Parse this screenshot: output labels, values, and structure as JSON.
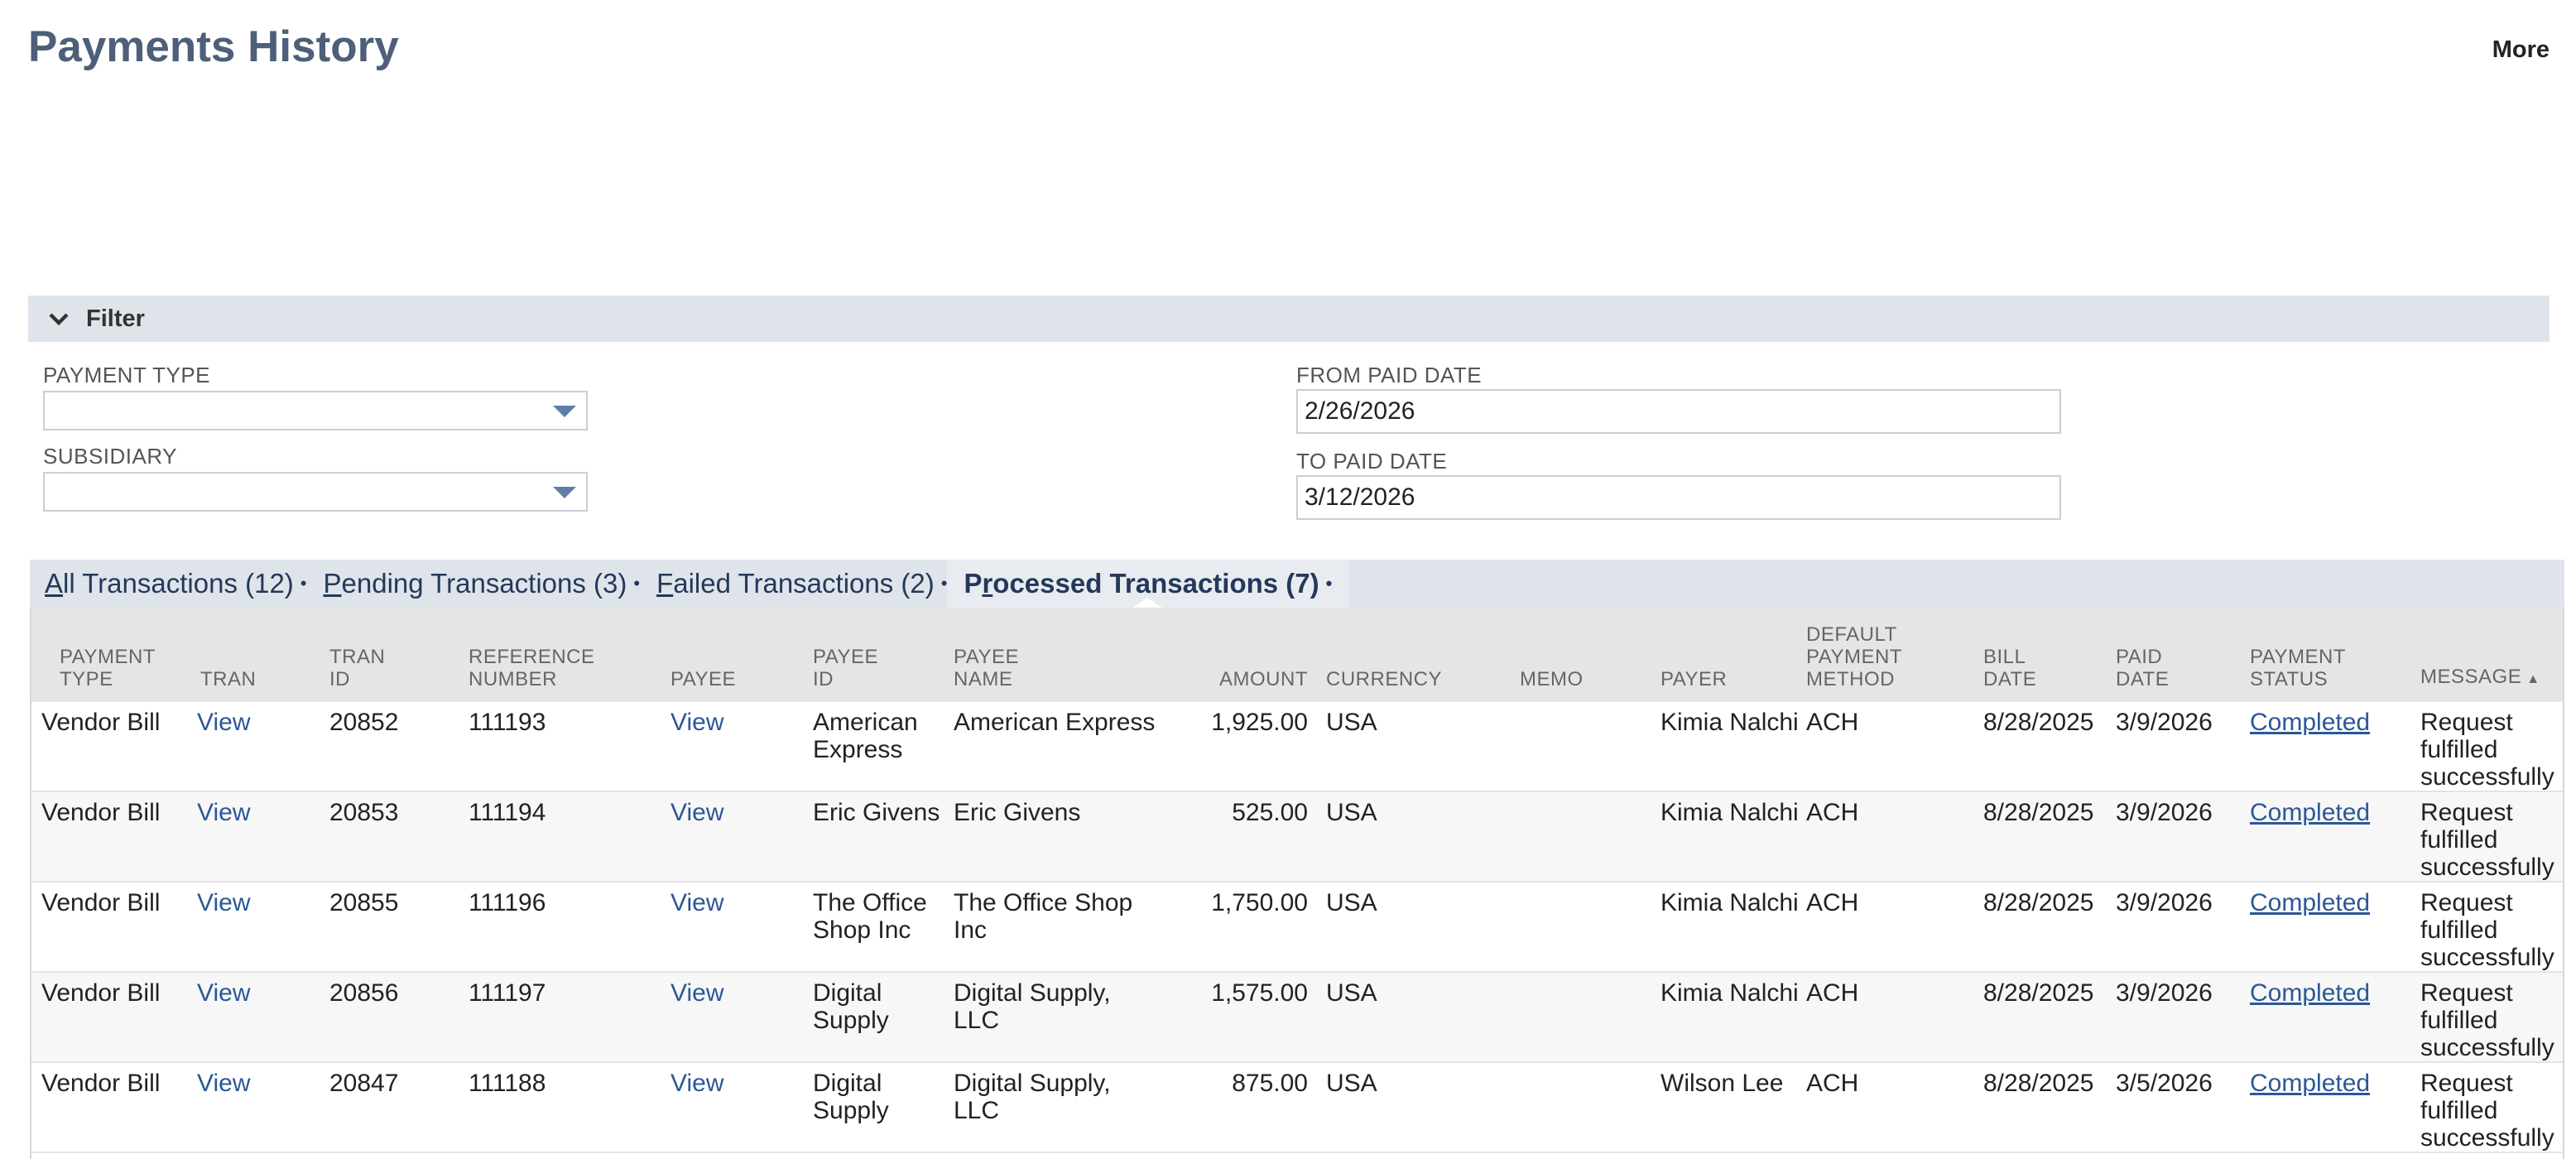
{
  "header": {
    "title": "Payments History",
    "more_label": "More"
  },
  "filter": {
    "label": "Filter",
    "payment_type_label": "PAYMENT TYPE",
    "payment_type_value": "",
    "subsidiary_label": "SUBSIDIARY",
    "subsidiary_value": "",
    "from_paid_date_label": "FROM PAID DATE",
    "from_paid_date_value": "2/26/2026",
    "to_paid_date_label": "TO PAID DATE",
    "to_paid_date_value": "3/12/2026"
  },
  "tabs": [
    {
      "accel": "A",
      "rest": "ll Transactions (12)",
      "dot": "•"
    },
    {
      "accel": "P",
      "rest": "ending Transactions (3)",
      "dot": "•"
    },
    {
      "accel": "F",
      "rest": "ailed Transactions (2)",
      "dot": "•"
    },
    {
      "pre": "P",
      "accel": "r",
      "rest": "ocessed Transactions (7)",
      "dot": "•"
    }
  ],
  "table": {
    "columns": [
      [
        "PAYMENT",
        "TYPE"
      ],
      [
        "",
        "TRAN"
      ],
      [
        "TRAN",
        "ID"
      ],
      [
        "REFERENCE",
        "NUMBER"
      ],
      [
        "",
        "PAYEE"
      ],
      [
        "PAYEE",
        "ID"
      ],
      [
        "PAYEE",
        "NAME"
      ],
      [
        "",
        "AMOUNT"
      ],
      [
        "",
        "CURRENCY"
      ],
      [
        "",
        "MEMO"
      ],
      [
        "",
        "PAYER"
      ],
      [
        "DEFAULT",
        "PAYMENT",
        "METHOD"
      ],
      [
        "BILL",
        "DATE"
      ],
      [
        "PAID",
        "DATE"
      ],
      [
        "PAYMENT",
        "STATUS"
      ],
      [
        "",
        "MESSAGE"
      ]
    ],
    "sort_indicator": "▲",
    "rows": [
      {
        "payment_type": "Vendor Bill",
        "tran": "View",
        "tran_id": "20852",
        "reference_number": "111193",
        "payee": "View",
        "payee_id": "American Express",
        "payee_name": "American Express",
        "amount": "1,925.00",
        "currency": "USA",
        "memo": "",
        "payer": "Kimia Nalchi",
        "method": "ACH",
        "bill_date": "8/28/2025",
        "paid_date": "3/9/2026",
        "status": "Completed",
        "message": "Request fulfilled successfully"
      },
      {
        "payment_type": "Vendor Bill",
        "tran": "View",
        "tran_id": "20853",
        "reference_number": "111194",
        "payee": "View",
        "payee_id": "Eric Givens",
        "payee_name": "Eric Givens",
        "amount": "525.00",
        "currency": "USA",
        "memo": "",
        "payer": "Kimia Nalchi",
        "method": "ACH",
        "bill_date": "8/28/2025",
        "paid_date": "3/9/2026",
        "status": "Completed",
        "message": "Request fulfilled successfully"
      },
      {
        "payment_type": "Vendor Bill",
        "tran": "View",
        "tran_id": "20855",
        "reference_number": "111196",
        "payee": "View",
        "payee_id": "The Office Shop Inc",
        "payee_name": "The Office Shop Inc",
        "amount": "1,750.00",
        "currency": "USA",
        "memo": "",
        "payer": "Kimia Nalchi",
        "method": "ACH",
        "bill_date": "8/28/2025",
        "paid_date": "3/9/2026",
        "status": "Completed",
        "message": "Request fulfilled successfully"
      },
      {
        "payment_type": "Vendor Bill",
        "tran": "View",
        "tran_id": "20856",
        "reference_number": "111197",
        "payee": "View",
        "payee_id": "Digital Supply",
        "payee_name": "Digital Supply, LLC",
        "amount": "1,575.00",
        "currency": "USA",
        "memo": "",
        "payer": "Kimia Nalchi",
        "method": "ACH",
        "bill_date": "8/28/2025",
        "paid_date": "3/9/2026",
        "status": "Completed",
        "message": "Request fulfilled successfully"
      },
      {
        "payment_type": "Vendor Bill",
        "tran": "View",
        "tran_id": "20847",
        "reference_number": "111188",
        "payee": "View",
        "payee_id": "Digital Supply",
        "payee_name": "Digital Supply, LLC",
        "amount": "875.00",
        "currency": "USA",
        "memo": "",
        "payer": "Wilson Lee",
        "method": "ACH",
        "bill_date": "8/28/2025",
        "paid_date": "3/5/2026",
        "status": "Completed",
        "message": "Request fulfilled successfully"
      }
    ]
  },
  "icons": {
    "filter_toggle": "chevron-down-icon",
    "select_arrow": "dropdown-arrow-icon",
    "sort": "sort-ascending-icon"
  },
  "colors": {
    "title": "#4d5f79",
    "link": "#2b5796",
    "header_band": "#dfe4eb"
  }
}
